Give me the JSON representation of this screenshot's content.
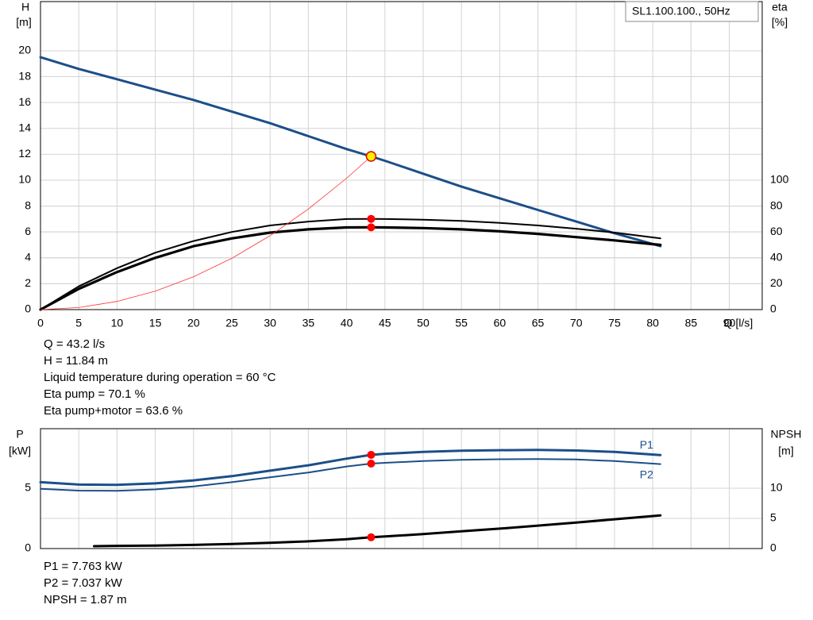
{
  "chart_data": [
    {
      "type": "line",
      "ylabel": [
        "H",
        "[m]"
      ],
      "y2label": [
        "eta",
        "[%]"
      ],
      "xlabel": "Q [l/s]",
      "legend_text": "SL1.100.100., 50Hz",
      "xlim": [
        0,
        94.3
      ],
      "xticks": [
        0,
        5,
        10,
        15,
        20,
        25,
        30,
        35,
        40,
        45,
        50,
        55,
        60,
        65,
        70,
        75,
        80,
        85,
        90
      ],
      "ylim": [
        0,
        23.8
      ],
      "yticks": [
        0,
        2,
        4,
        6,
        8,
        10,
        12,
        14,
        16,
        18,
        20
      ],
      "y2lim": [
        0,
        238
      ],
      "y2ticks": [
        0,
        20,
        40,
        60,
        80,
        100
      ],
      "grid": true,
      "series": [
        {
          "color": "#1b4f88",
          "width": 3,
          "x": [
            0,
            5,
            10,
            15,
            20,
            25,
            30,
            35,
            40,
            43.2,
            45,
            50,
            55,
            60,
            65,
            70,
            75,
            81
          ],
          "values": [
            19.5,
            18.6,
            17.8,
            17.0,
            16.2,
            15.3,
            14.4,
            13.4,
            12.4,
            11.84,
            11.5,
            10.5,
            9.5,
            8.6,
            7.7,
            6.8,
            5.9,
            4.9
          ]
        },
        {
          "color": "#000000",
          "width": 2,
          "axis": "y2",
          "x": [
            0,
            5,
            10,
            15,
            20,
            25,
            30,
            35,
            40,
            43.2,
            45,
            50,
            55,
            60,
            65,
            70,
            75,
            81
          ],
          "values": [
            0,
            18,
            32,
            44,
            53,
            60,
            65,
            68,
            70,
            70.1,
            70,
            69.5,
            68.5,
            67,
            65,
            62.5,
            59.5,
            55
          ]
        },
        {
          "color": "#000000",
          "width": 3.2,
          "axis": "y2",
          "x": [
            0,
            5,
            10,
            15,
            20,
            25,
            30,
            35,
            40,
            43.2,
            45,
            50,
            55,
            60,
            65,
            70,
            75,
            81
          ],
          "values": [
            0,
            16,
            29,
            40,
            49,
            55,
            59.5,
            62,
            63.5,
            63.6,
            63.5,
            63,
            62,
            60.5,
            58.5,
            56,
            53.5,
            50
          ]
        },
        {
          "color": "#ff3030",
          "width": 0.8,
          "x": [
            0,
            5,
            10,
            15,
            20,
            25,
            30,
            35,
            40,
            43.2
          ],
          "values": [
            0,
            0.16,
            0.63,
            1.43,
            2.54,
            3.96,
            5.71,
            7.77,
            10.15,
            11.84
          ]
        }
      ],
      "points": [
        {
          "x": 43.2,
          "y": 11.84,
          "color": "#ffee00"
        },
        {
          "x": 43.2,
          "y": 70.1,
          "axis": "y2",
          "color": "#ff0000"
        },
        {
          "x": 43.2,
          "y": 63.6,
          "axis": "y2",
          "color": "#ff0000"
        }
      ],
      "annotations": [
        "Q = 43.2 l/s",
        "H = 11.84 m",
        "Liquid temperature during operation = 60 °C",
        "Eta pump = 70.1 %",
        "Eta pump+motor = 63.6 %"
      ]
    },
    {
      "type": "line",
      "ylabel": [
        "P",
        "[kW]"
      ],
      "y2label": [
        "NPSH",
        "[m]"
      ],
      "xlim": [
        0,
        94.3
      ],
      "xticks": [
        0,
        5,
        10,
        15,
        20,
        25,
        30,
        35,
        40,
        45,
        50,
        55,
        60,
        65,
        70,
        75,
        80,
        85,
        90
      ],
      "ylim": [
        0,
        9.93
      ],
      "yticks": [
        0,
        5
      ],
      "y2lim": [
        0,
        19.87
      ],
      "y2ticks": [
        0,
        5,
        10
      ],
      "grid": true,
      "series": [
        {
          "name": "P1",
          "color": "#1b4f88",
          "width": 3,
          "x": [
            0,
            5,
            10,
            15,
            20,
            25,
            30,
            35,
            40,
            43.2,
            45,
            50,
            55,
            60,
            65,
            70,
            75,
            81
          ],
          "values": [
            5.5,
            5.3,
            5.28,
            5.4,
            5.65,
            6.0,
            6.45,
            6.9,
            7.45,
            7.763,
            7.85,
            8.0,
            8.1,
            8.15,
            8.17,
            8.12,
            8.0,
            7.75
          ]
        },
        {
          "name": "P2",
          "color": "#1b4f88",
          "width": 2,
          "x": [
            0,
            5,
            10,
            15,
            20,
            25,
            30,
            35,
            40,
            43.2,
            45,
            50,
            55,
            60,
            65,
            70,
            75,
            81
          ],
          "values": [
            4.95,
            4.8,
            4.78,
            4.9,
            5.15,
            5.5,
            5.9,
            6.3,
            6.8,
            7.037,
            7.1,
            7.25,
            7.35,
            7.4,
            7.42,
            7.38,
            7.25,
            7.0
          ]
        },
        {
          "color": "#000000",
          "width": 3,
          "axis": "y2",
          "x": [
            7,
            10,
            15,
            20,
            25,
            30,
            35,
            40,
            43.2,
            45,
            50,
            55,
            60,
            65,
            70,
            75,
            81
          ],
          "values": [
            0.4,
            0.45,
            0.5,
            0.6,
            0.75,
            0.95,
            1.2,
            1.55,
            1.87,
            2.0,
            2.4,
            2.85,
            3.3,
            3.8,
            4.3,
            4.85,
            5.5
          ]
        }
      ],
      "points": [
        {
          "x": 43.2,
          "y": 7.763,
          "color": "#ff0000"
        },
        {
          "x": 43.2,
          "y": 7.037,
          "color": "#ff0000"
        },
        {
          "x": 43.2,
          "y": 1.87,
          "axis": "y2",
          "color": "#ff0000"
        }
      ],
      "annotations": [
        "P1 = 7.763 kW",
        "P2 = 7.037 kW",
        "NPSH = 1.87 m"
      ]
    }
  ]
}
